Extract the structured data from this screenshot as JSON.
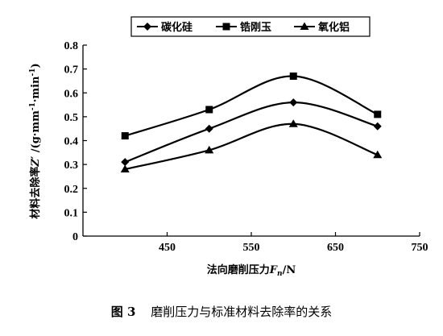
{
  "chart_data": {
    "type": "line",
    "x": [
      400,
      500,
      600,
      700
    ],
    "series": [
      {
        "name": "碳化硅",
        "marker": "diamond",
        "values": [
          0.31,
          0.45,
          0.56,
          0.46
        ]
      },
      {
        "name": "锆刚玉",
        "marker": "square",
        "values": [
          0.42,
          0.53,
          0.67,
          0.51
        ]
      },
      {
        "name": "氧化铝",
        "marker": "triangle",
        "values": [
          0.28,
          0.36,
          0.47,
          0.34
        ]
      }
    ],
    "xlim": [
      350,
      750
    ],
    "ylim": [
      0,
      0.8
    ],
    "xticks": [
      450,
      550,
      650,
      750
    ],
    "yticks": [
      0,
      0.1,
      0.2,
      0.3,
      0.4,
      0.5,
      0.6,
      0.7,
      0.8
    ],
    "ytick_labels": [
      "0",
      "0.1",
      "0.2",
      "0.3",
      "0.4",
      "0.5",
      "0.6",
      "0.7",
      "0.8"
    ],
    "xlabel": {
      "main": "法向磨削压力",
      "var": "F",
      "sub": "n",
      "unit": "/N"
    },
    "ylabel": {
      "main": "材料去除率",
      "var": "Z′",
      "unit": " /(g·mm",
      "exp1": "-1",
      "mid": "·min",
      "exp2": "-1",
      "end": ")"
    },
    "legend_placement": "top",
    "grid": false,
    "line_color": "#000000"
  },
  "caption": {
    "figure_label": "图 3",
    "text": "磨削压力与标准材料去除率的关系"
  }
}
